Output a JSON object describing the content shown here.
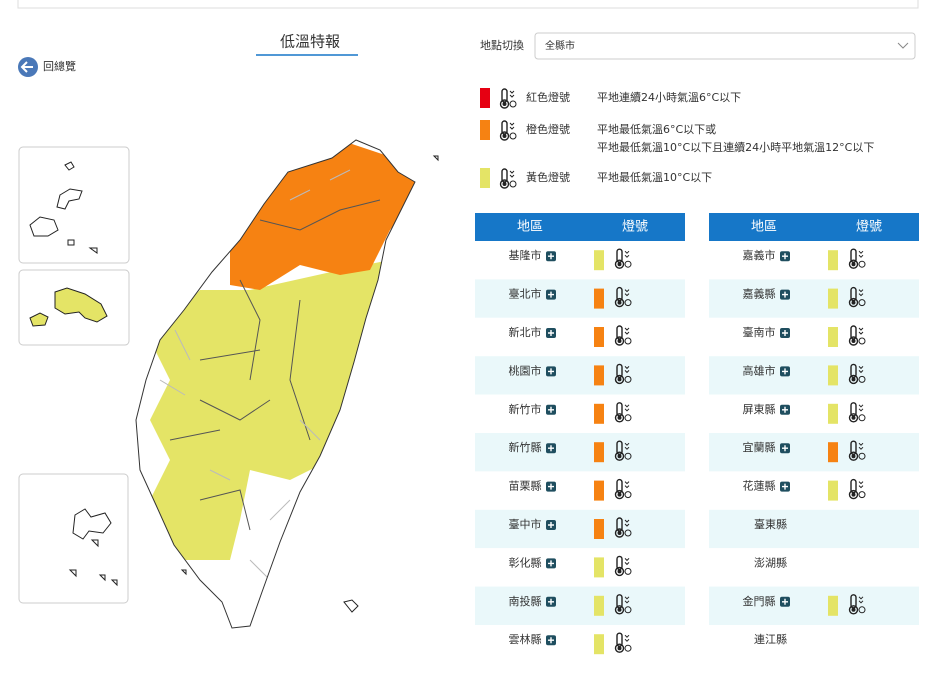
{
  "header": {
    "title": "低溫特報",
    "back": "回總覽",
    "location_label": "地點切換",
    "location_value": "全縣市"
  },
  "legend": [
    {
      "name": "紅色燈號",
      "color": "#e60012",
      "description": [
        "平地連續24小時氣溫6°C以下"
      ]
    },
    {
      "name": "橙色燈號",
      "color": "#f68212",
      "description": [
        "平地最低氣溫6°C以下或",
        "平地最低氣溫10°C以下且連續24小時平地氣溫12°C以下"
      ]
    },
    {
      "name": "黃色燈號",
      "color": "#e4e466",
      "description": [
        "平地最低氣溫10°C以下"
      ]
    }
  ],
  "tables": [
    {
      "headers": [
        "地區",
        "燈號"
      ],
      "rows": [
        {
          "region": "基隆市",
          "light": 2
        },
        {
          "region": "臺北市",
          "light": 1
        },
        {
          "region": "新北市",
          "light": 1
        },
        {
          "region": "桃園市",
          "light": 1
        },
        {
          "region": "新竹市",
          "light": 1
        },
        {
          "region": "新竹縣",
          "light": 1
        },
        {
          "region": "苗栗縣",
          "light": 1
        },
        {
          "region": "臺中市",
          "light": 1
        },
        {
          "region": "彰化縣",
          "light": 2
        },
        {
          "region": "南投縣",
          "light": 2
        },
        {
          "region": "雲林縣",
          "light": 2
        }
      ]
    },
    {
      "headers": [
        "地區",
        "燈號"
      ],
      "rows": [
        {
          "region": "嘉義市",
          "light": 2
        },
        {
          "region": "嘉義縣",
          "light": 2
        },
        {
          "region": "臺南市",
          "light": 2
        },
        {
          "region": "高雄市",
          "light": 2
        },
        {
          "region": "屏東縣",
          "light": 2
        },
        {
          "region": "宜蘭縣",
          "light": 1
        },
        {
          "region": "花蓮縣",
          "light": 2
        },
        {
          "region": "臺東縣"
        },
        {
          "region": "澎湖縣"
        },
        {
          "region": "金門縣",
          "light": 2
        },
        {
          "region": "連江縣"
        }
      ]
    }
  ]
}
